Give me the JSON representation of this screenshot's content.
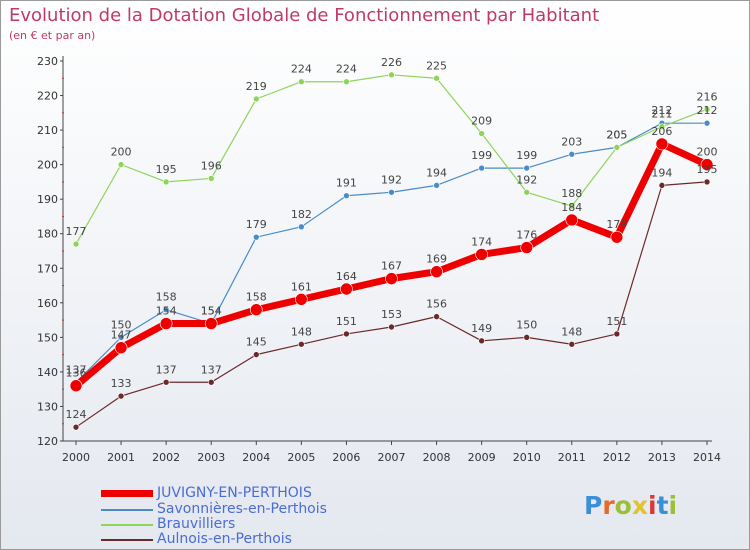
{
  "chart_data": {
    "type": "line",
    "title": "Evolution de la Dotation Globale de Fonctionnement par Habitant",
    "subtitle": "(en € et par an)",
    "xlabel": "",
    "ylabel": "",
    "ylim": [
      120,
      230
    ],
    "yticks": [
      120,
      130,
      140,
      150,
      160,
      170,
      180,
      190,
      200,
      210,
      220,
      230
    ],
    "categories": [
      "2000",
      "2001",
      "2002",
      "2003",
      "2004",
      "2005",
      "2006",
      "2007",
      "2008",
      "2009",
      "2010",
      "2011",
      "2012",
      "2013",
      "2014"
    ],
    "grid": false,
    "legend_position": "bottom-left",
    "series": [
      {
        "name": "Savonnières-en-Perthois",
        "color": "#4a8cc8",
        "values": [
          137,
          150,
          158,
          154,
          179,
          182,
          191,
          192,
          194,
          199,
          199,
          203,
          205,
          212,
          212
        ],
        "labels": [
          "137",
          "150",
          "158",
          "154",
          "179",
          "182",
          "191",
          "192",
          "194",
          "199",
          "199",
          "203",
          "205",
          "212",
          "212"
        ]
      },
      {
        "name": "Brauvilliers",
        "color": "#8fd45a",
        "values": [
          177,
          200,
          195,
          196,
          219,
          224,
          224,
          226,
          225,
          209,
          192,
          188,
          205,
          211,
          216
        ],
        "labels": [
          "177",
          "200",
          "195",
          "196",
          "219",
          "224",
          "224",
          "226",
          "225",
          "209",
          "192",
          "188",
          "205",
          "211",
          "216"
        ]
      },
      {
        "name": "Aulnois-en-Perthois",
        "color": "#6b2a2a",
        "values": [
          124,
          133,
          137,
          137,
          145,
          148,
          151,
          153,
          156,
          149,
          150,
          148,
          151,
          194,
          195
        ],
        "labels": [
          "124",
          "133",
          "137",
          "137",
          "145",
          "148",
          "151",
          "153",
          "156",
          "149",
          "150",
          "148",
          "151",
          "194",
          "195"
        ]
      },
      {
        "name": "JUVIGNY-EN-PERTHOIS",
        "color": "#ee0000",
        "values": [
          136,
          147,
          154,
          154,
          158,
          161,
          164,
          167,
          169,
          174,
          176,
          184,
          179,
          206,
          200
        ],
        "labels": [
          "136",
          "147",
          "154",
          "154",
          "158",
          "161",
          "164",
          "167",
          "169",
          "174",
          "176",
          "184",
          "179",
          "206",
          "200"
        ]
      }
    ],
    "legend": [
      "JUVIGNY-EN-PERTHOIS",
      "Savonnières-en-Perthois",
      "Brauvilliers",
      "Aulnois-en-Perthois"
    ]
  },
  "logo": {
    "letters": [
      "P",
      "r",
      "o",
      "x",
      "i",
      "t",
      "i"
    ]
  }
}
